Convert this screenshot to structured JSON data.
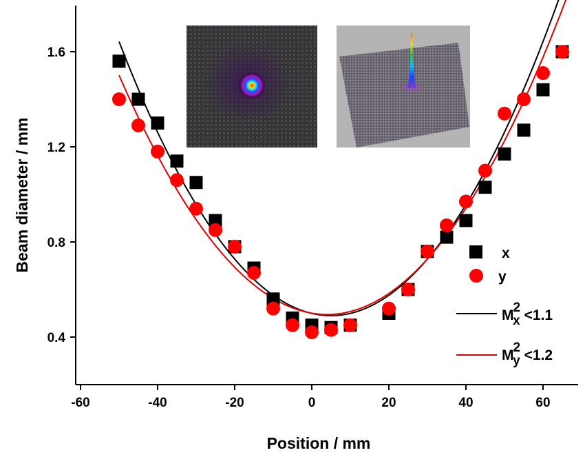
{
  "chart_data": {
    "type": "scatter",
    "title": "",
    "xlabel": "Position / mm",
    "ylabel": "Beam diameter / mm",
    "xlim": [
      -60,
      70
    ],
    "ylim": [
      0.2,
      1.78
    ],
    "xticks": [
      -60,
      -40,
      -20,
      0,
      20,
      40,
      60
    ],
    "xtick_labels": [
      "-60",
      "-40",
      "-20",
      "0",
      "20",
      "40",
      "60"
    ],
    "yticks": [
      0.4,
      0.8,
      1.2,
      1.6
    ],
    "ytick_labels": [
      "0.4",
      "0.8",
      "1.2",
      "1.6"
    ],
    "grid": false,
    "legend_position": "right",
    "series": [
      {
        "name": "x",
        "marker": "square",
        "color": "#000000",
        "x": [
          -50,
          -45,
          -40,
          -35,
          -30,
          -25,
          -20,
          -15,
          -10,
          -5,
          0,
          5,
          10,
          20,
          25,
          30,
          35,
          40,
          45,
          50,
          55,
          60,
          65
        ],
        "y": [
          1.56,
          1.4,
          1.3,
          1.14,
          1.05,
          0.89,
          0.78,
          0.69,
          0.56,
          0.48,
          0.45,
          0.44,
          0.45,
          0.5,
          0.6,
          0.76,
          0.82,
          0.89,
          1.03,
          1.17,
          1.27,
          1.44,
          1.6
        ]
      },
      {
        "name": "y",
        "marker": "circle",
        "color": "#ff0000",
        "x": [
          -50,
          -45,
          -40,
          -35,
          -30,
          -25,
          -20,
          -15,
          -10,
          -5,
          0,
          5,
          10,
          20,
          25,
          30,
          35,
          40,
          45,
          50,
          55,
          60,
          65
        ],
        "y": [
          1.4,
          1.29,
          1.18,
          1.06,
          0.94,
          0.85,
          0.78,
          0.67,
          0.52,
          0.45,
          0.42,
          0.43,
          0.45,
          0.52,
          0.6,
          0.76,
          0.87,
          0.97,
          1.1,
          1.34,
          1.4,
          1.51,
          1.6
        ]
      }
    ],
    "fits": [
      {
        "name": "Mx2",
        "label_main": "M",
        "label_sup": "2",
        "label_sub": "x",
        "label_rest": "<1.1",
        "color": "#000000",
        "vertex_x": 5,
        "vertex_y": 0.49,
        "coef": 0.000381,
        "x_range": [
          -50,
          65
        ]
      },
      {
        "name": "My2",
        "label_main": "M",
        "label_sup": "2",
        "label_sub": "y",
        "label_rest": "<1.2",
        "color": "#dd0000",
        "vertex_x": 4,
        "vertex_y": 0.495,
        "coef": 0.000345,
        "x_range": [
          -50,
          67
        ]
      }
    ],
    "insets": [
      {
        "name": "beam-profile-2d-image",
        "description_icon": "beam-spot-icon"
      },
      {
        "name": "beam-profile-3d-image",
        "description_icon": "beam-3d-peak-icon"
      }
    ]
  }
}
